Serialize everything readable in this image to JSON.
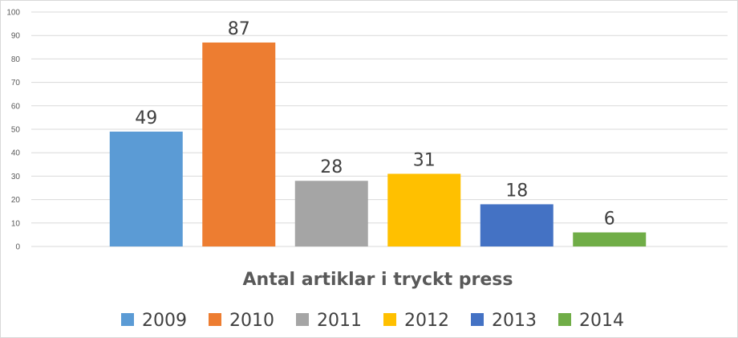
{
  "chart_data": {
    "type": "bar",
    "title": "Antal artiklar i tryckt press",
    "categories": [
      "2009",
      "2010",
      "2011",
      "2012",
      "2013",
      "2014"
    ],
    "values": [
      49,
      87,
      28,
      31,
      18,
      6
    ],
    "colors": [
      "#5b9bd5",
      "#ed7d31",
      "#a5a5a5",
      "#ffc000",
      "#4472c4",
      "#70ad47"
    ],
    "ylim": [
      0,
      100
    ],
    "yticks": [
      0,
      10,
      20,
      30,
      40,
      50,
      60,
      70,
      80,
      90,
      100
    ],
    "grid": true,
    "legend_placement": "bottom",
    "xlabel": "",
    "ylabel": ""
  }
}
